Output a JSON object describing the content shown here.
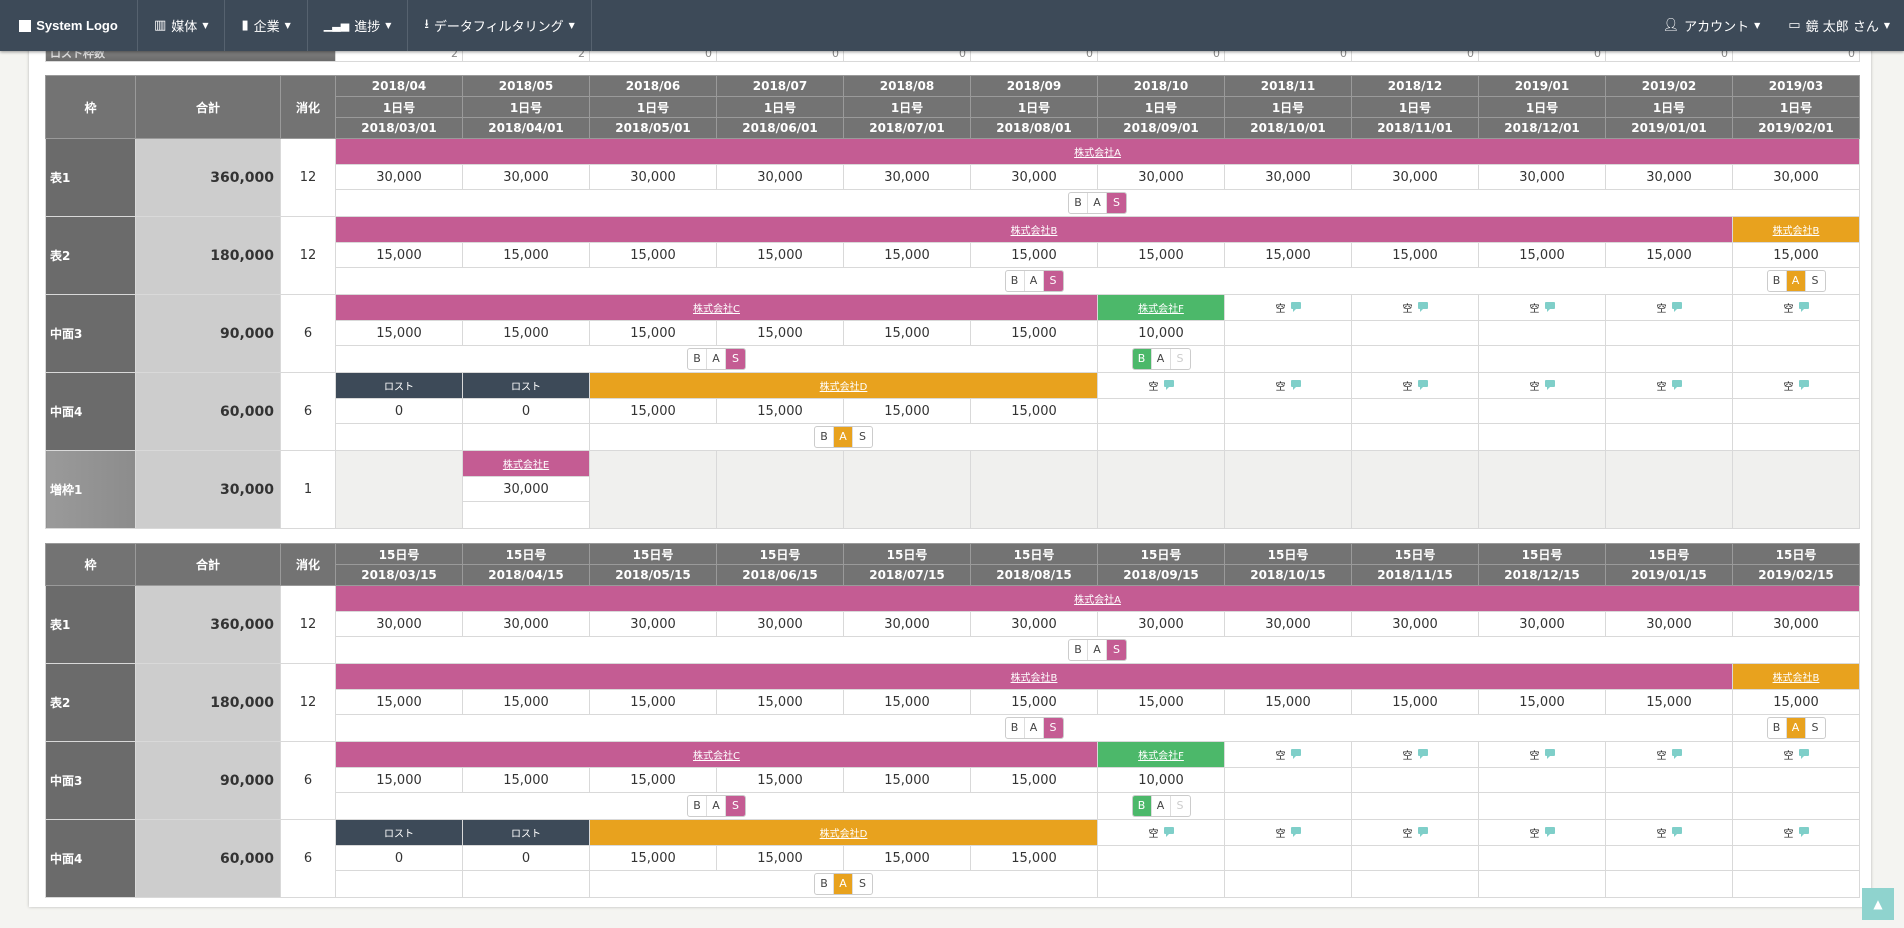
{
  "nav": {
    "logo": "System Logo",
    "menu": [
      {
        "label": "媒体",
        "icon": "media-icon"
      },
      {
        "label": "企業",
        "icon": "company-icon"
      },
      {
        "label": "進捗",
        "icon": "chart-icon"
      },
      {
        "label": "データフィルタリング",
        "icon": "download-icon"
      }
    ],
    "account": "アカウント",
    "user": "鏡 太郎 さん"
  },
  "lost_row": {
    "label": "ロスト枠数",
    "values": [
      "2",
      "2",
      "0",
      "0",
      "0",
      "0",
      "0",
      "0",
      "0",
      "0",
      "0",
      "0"
    ]
  },
  "colors": {
    "pink": "#c45c93",
    "orange": "#e8a21e",
    "green": "#4cb86a",
    "dark": "#3d4a58"
  },
  "empty_label": "空",
  "tables": [
    {
      "headers": {
        "frame": "枠",
        "total": "合計",
        "consumed": "消化"
      },
      "header_rows": [
        [
          "2018/04",
          "2018/05",
          "2018/06",
          "2018/07",
          "2018/08",
          "2018/09",
          "2018/10",
          "2018/11",
          "2018/12",
          "2019/01",
          "2019/02",
          "2019/03"
        ],
        [
          "1日号",
          "1日号",
          "1日号",
          "1日号",
          "1日号",
          "1日号",
          "1日号",
          "1日号",
          "1日号",
          "1日号",
          "1日号",
          "1日号"
        ],
        [
          "2018/03/01",
          "2018/04/01",
          "2018/05/01",
          "2018/06/01",
          "2018/07/01",
          "2018/08/01",
          "2018/09/01",
          "2018/10/01",
          "2018/11/01",
          "2018/12/01",
          "2019/01/01",
          "2019/02/01"
        ]
      ],
      "rows": [
        {
          "label": "表1",
          "total": "360,000",
          "consumed": "12",
          "segments": [
            {
              "kind": "company",
              "text": "株式会社A",
              "span": 12,
              "color": "pink"
            }
          ],
          "values": [
            "30,000",
            "30,000",
            "30,000",
            "30,000",
            "30,000",
            "30,000",
            "30,000",
            "30,000",
            "30,000",
            "30,000",
            "30,000",
            "30,000"
          ],
          "badges": [
            {
              "span": 12,
              "active": "S",
              "color": "pink"
            }
          ]
        },
        {
          "label": "表2",
          "total": "180,000",
          "consumed": "12",
          "segments": [
            {
              "kind": "company",
              "text": "株式会社B",
              "span": 11,
              "color": "pink"
            },
            {
              "kind": "company",
              "text": "株式会社B",
              "span": 1,
              "color": "orange"
            }
          ],
          "values": [
            "15,000",
            "15,000",
            "15,000",
            "15,000",
            "15,000",
            "15,000",
            "15,000",
            "15,000",
            "15,000",
            "15,000",
            "15,000",
            "15,000"
          ],
          "badges": [
            {
              "span": 11,
              "active": "S",
              "color": "pink"
            },
            {
              "span": 1,
              "active": "A",
              "color": "orange"
            }
          ]
        },
        {
          "label": "中面3",
          "total": "90,000",
          "consumed": "6",
          "segments": [
            {
              "kind": "company",
              "text": "株式会社C",
              "span": 6,
              "color": "pink"
            },
            {
              "kind": "company",
              "text": "株式会社F",
              "span": 1,
              "color": "green"
            },
            {
              "kind": "empty",
              "span": 1
            },
            {
              "kind": "empty",
              "span": 1
            },
            {
              "kind": "empty",
              "span": 1
            },
            {
              "kind": "empty",
              "span": 1
            },
            {
              "kind": "empty",
              "span": 1
            }
          ],
          "values": [
            "15,000",
            "15,000",
            "15,000",
            "15,000",
            "15,000",
            "15,000",
            "10,000",
            "",
            "",
            "",
            "",
            ""
          ],
          "badges": [
            {
              "span": 6,
              "active": "S",
              "color": "pink"
            },
            {
              "span": 1,
              "active": "B",
              "color": "green",
              "disabled": "S"
            },
            {
              "span": 1
            },
            {
              "span": 1
            },
            {
              "span": 1
            },
            {
              "span": 1
            },
            {
              "span": 1
            }
          ]
        },
        {
          "label": "中面4",
          "total": "60,000",
          "consumed": "6",
          "segments": [
            {
              "kind": "lost",
              "text": "ロスト",
              "span": 1,
              "color": "dark"
            },
            {
              "kind": "lost",
              "text": "ロスト",
              "span": 1,
              "color": "dark"
            },
            {
              "kind": "company",
              "text": "株式会社D",
              "span": 4,
              "color": "orange"
            },
            {
              "kind": "empty",
              "span": 1
            },
            {
              "kind": "empty",
              "span": 1
            },
            {
              "kind": "empty",
              "span": 1
            },
            {
              "kind": "empty",
              "span": 1
            },
            {
              "kind": "empty",
              "span": 1
            },
            {
              "kind": "empty",
              "span": 1
            }
          ],
          "values": [
            "0",
            "0",
            "15,000",
            "15,000",
            "15,000",
            "15,000",
            "",
            "",
            "",
            "",
            "",
            ""
          ],
          "badges": [
            {
              "span": 1
            },
            {
              "span": 1
            },
            {
              "span": 4,
              "active": "A",
              "color": "orange"
            },
            {
              "span": 1
            },
            {
              "span": 1
            },
            {
              "span": 1
            },
            {
              "span": 1
            },
            {
              "span": 1
            },
            {
              "span": 1
            }
          ]
        },
        {
          "label": "増枠1",
          "total": "30,000",
          "consumed": "1",
          "extra": true,
          "segments": [
            {
              "kind": "blank",
              "span": 1
            },
            {
              "kind": "company",
              "text": "株式会社E",
              "span": 1,
              "color": "pink"
            },
            {
              "kind": "blank",
              "span": 1
            },
            {
              "kind": "blank",
              "span": 1
            },
            {
              "kind": "blank",
              "span": 1
            },
            {
              "kind": "blank",
              "span": 1
            },
            {
              "kind": "blank",
              "span": 1
            },
            {
              "kind": "blank",
              "span": 1
            },
            {
              "kind": "blank",
              "span": 1
            },
            {
              "kind": "blank",
              "span": 1
            },
            {
              "kind": "blank",
              "span": 1
            },
            {
              "kind": "blank",
              "span": 1
            }
          ],
          "values": [
            "",
            "30,000",
            "",
            "",
            "",
            "",
            "",
            "",
            "",
            "",
            "",
            ""
          ],
          "badges": [
            {
              "span": 1
            },
            {
              "span": 1,
              "active": "S",
              "color": "pink"
            }
          ]
        }
      ]
    },
    {
      "headers": {
        "frame": "枠",
        "total": "合計",
        "consumed": "消化"
      },
      "header_rows": [
        [
          "15日号",
          "15日号",
          "15日号",
          "15日号",
          "15日号",
          "15日号",
          "15日号",
          "15日号",
          "15日号",
          "15日号",
          "15日号",
          "15日号"
        ],
        [
          "2018/03/15",
          "2018/04/15",
          "2018/05/15",
          "2018/06/15",
          "2018/07/15",
          "2018/08/15",
          "2018/09/15",
          "2018/10/15",
          "2018/11/15",
          "2018/12/15",
          "2019/01/15",
          "2019/02/15"
        ]
      ],
      "rows": [
        {
          "label": "表1",
          "total": "360,000",
          "consumed": "12",
          "segments": [
            {
              "kind": "company",
              "text": "株式会社A",
              "span": 12,
              "color": "pink"
            }
          ],
          "values": [
            "30,000",
            "30,000",
            "30,000",
            "30,000",
            "30,000",
            "30,000",
            "30,000",
            "30,000",
            "30,000",
            "30,000",
            "30,000",
            "30,000"
          ],
          "badges": [
            {
              "span": 12,
              "active": "S",
              "color": "pink"
            }
          ]
        },
        {
          "label": "表2",
          "total": "180,000",
          "consumed": "12",
          "segments": [
            {
              "kind": "company",
              "text": "株式会社B",
              "span": 11,
              "color": "pink"
            },
            {
              "kind": "company",
              "text": "株式会社B",
              "span": 1,
              "color": "orange"
            }
          ],
          "values": [
            "15,000",
            "15,000",
            "15,000",
            "15,000",
            "15,000",
            "15,000",
            "15,000",
            "15,000",
            "15,000",
            "15,000",
            "15,000",
            "15,000"
          ],
          "badges": [
            {
              "span": 11,
              "active": "S",
              "color": "pink"
            },
            {
              "span": 1,
              "active": "A",
              "color": "orange"
            }
          ]
        },
        {
          "label": "中面3",
          "total": "90,000",
          "consumed": "6",
          "segments": [
            {
              "kind": "company",
              "text": "株式会社C",
              "span": 6,
              "color": "pink"
            },
            {
              "kind": "company",
              "text": "株式会社F",
              "span": 1,
              "color": "green"
            },
            {
              "kind": "empty",
              "span": 1
            },
            {
              "kind": "empty",
              "span": 1
            },
            {
              "kind": "empty",
              "span": 1
            },
            {
              "kind": "empty",
              "span": 1
            },
            {
              "kind": "empty",
              "span": 1
            }
          ],
          "values": [
            "15,000",
            "15,000",
            "15,000",
            "15,000",
            "15,000",
            "15,000",
            "10,000",
            "",
            "",
            "",
            "",
            ""
          ],
          "badges": [
            {
              "span": 6,
              "active": "S",
              "color": "pink"
            },
            {
              "span": 1,
              "active": "B",
              "color": "green",
              "disabled": "S"
            },
            {
              "span": 1
            },
            {
              "span": 1
            },
            {
              "span": 1
            },
            {
              "span": 1
            },
            {
              "span": 1
            }
          ]
        },
        {
          "label": "中面4",
          "total": "60,000",
          "consumed": "6",
          "segments": [
            {
              "kind": "lost",
              "text": "ロスト",
              "span": 1,
              "color": "dark"
            },
            {
              "kind": "lost",
              "text": "ロスト",
              "span": 1,
              "color": "dark"
            },
            {
              "kind": "company",
              "text": "株式会社D",
              "span": 4,
              "color": "orange"
            },
            {
              "kind": "empty",
              "span": 1
            },
            {
              "kind": "empty",
              "span": 1
            },
            {
              "kind": "empty",
              "span": 1
            },
            {
              "kind": "empty",
              "span": 1
            },
            {
              "kind": "empty",
              "span": 1
            },
            {
              "kind": "empty",
              "span": 1
            }
          ],
          "values": [
            "0",
            "0",
            "15,000",
            "15,000",
            "15,000",
            "15,000",
            "",
            "",
            "",
            "",
            "",
            ""
          ],
          "badges": [
            {
              "span": 1
            },
            {
              "span": 1
            },
            {
              "span": 4,
              "active": "A",
              "color": "orange"
            },
            {
              "span": 1
            },
            {
              "span": 1
            },
            {
              "span": 1
            },
            {
              "span": 1
            },
            {
              "span": 1
            },
            {
              "span": 1
            }
          ]
        }
      ]
    }
  ],
  "badge_letters": [
    "B",
    "A",
    "S"
  ],
  "scroll_top": "▲"
}
